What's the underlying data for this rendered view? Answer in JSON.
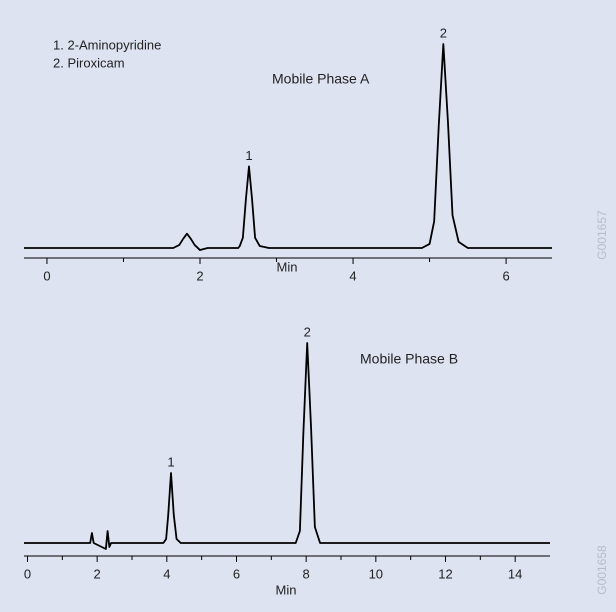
{
  "chart_data": [
    {
      "type": "line",
      "legend": [
        "1. 2-Aminopyridine",
        "2. Piroxicam"
      ],
      "xlabel": "Min",
      "figure_id": "G001657",
      "xlim": [
        -0.3,
        6.6
      ],
      "xticks": [
        0,
        2,
        4,
        6
      ],
      "minor_xticks": [
        1,
        3,
        5
      ],
      "ylim": [
        0,
        100
      ],
      "series": [
        {
          "name": "Mobile Phase A",
          "color": "#000000",
          "x": [
            -0.3,
            1.65,
            1.73,
            1.78,
            1.83,
            1.88,
            1.93,
            2.0,
            2.1,
            2.5,
            2.52,
            2.56,
            2.6,
            2.64,
            2.68,
            2.72,
            2.78,
            2.9,
            4.9,
            5.0,
            5.06,
            5.12,
            5.18,
            5.24,
            5.3,
            5.38,
            5.5,
            6.6
          ],
          "values": [
            0,
            0,
            1.5,
            4.5,
            7,
            4.5,
            1.5,
            -1,
            0,
            0,
            1,
            5,
            24,
            40,
            24,
            5,
            1,
            0,
            0,
            2,
            13,
            60,
            100,
            62,
            16,
            3,
            0,
            0
          ]
        }
      ],
      "annotations": [
        {
          "text": "1",
          "x": 2.64
        },
        {
          "text": "2",
          "x": 5.18
        }
      ]
    },
    {
      "type": "line",
      "xlabel": "Min",
      "figure_id": "G001658",
      "xlim": [
        -0.1,
        15
      ],
      "xticks": [
        0,
        2,
        4,
        6,
        8,
        10,
        12,
        14
      ],
      "minor_xticks": [
        1,
        3,
        5,
        7,
        9,
        11,
        13
      ],
      "ylim": [
        0,
        100
      ],
      "series": [
        {
          "name": "Mobile Phase B",
          "color": "#000000",
          "x": [
            -0.1,
            1.8,
            1.85,
            1.9,
            2.25,
            2.3,
            2.35,
            2.4,
            3.9,
            3.98,
            4.04,
            4.12,
            4.2,
            4.28,
            4.4,
            7.7,
            7.82,
            7.92,
            8.03,
            8.14,
            8.25,
            8.4,
            15
          ],
          "values": [
            0,
            0,
            5,
            0,
            -3,
            6,
            -2,
            0,
            0,
            2,
            14,
            35,
            14,
            2,
            0,
            0,
            6,
            55,
            100,
            58,
            8,
            0,
            0
          ]
        }
      ],
      "annotations": [
        {
          "text": "1",
          "x": 4.12
        },
        {
          "text": "2",
          "x": 8.03
        }
      ]
    }
  ]
}
